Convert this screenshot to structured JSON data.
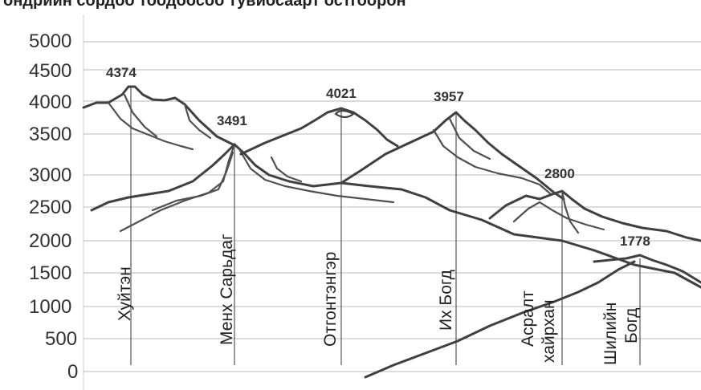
{
  "caption": "ондрийн сордоо тоодоосоо тувиосаарт остгоорон",
  "chart_data": {
    "type": "profile",
    "ylim": [
      0,
      5000
    ],
    "yticks": [
      "5000",
      "4500",
      "4000",
      "3500",
      "3000",
      "2500",
      "2000",
      "1500",
      "1000",
      "500",
      "0"
    ],
    "peaks": [
      {
        "name": "Хуйтэн",
        "elevation": "4374"
      },
      {
        "name": "Менх Сарьдаг",
        "elevation": "3491"
      },
      {
        "name": "Отгонтэнгэр",
        "elevation": "4021"
      },
      {
        "name": "Их Богд",
        "elevation": "3957"
      },
      {
        "name": "Асралт хайрхан",
        "elevation": "2800"
      },
      {
        "name": "Шилийн Богд",
        "elevation": "1778"
      }
    ]
  },
  "colors": {
    "line": "#404040",
    "grid": "#b8b8b8",
    "text": "#333333"
  }
}
